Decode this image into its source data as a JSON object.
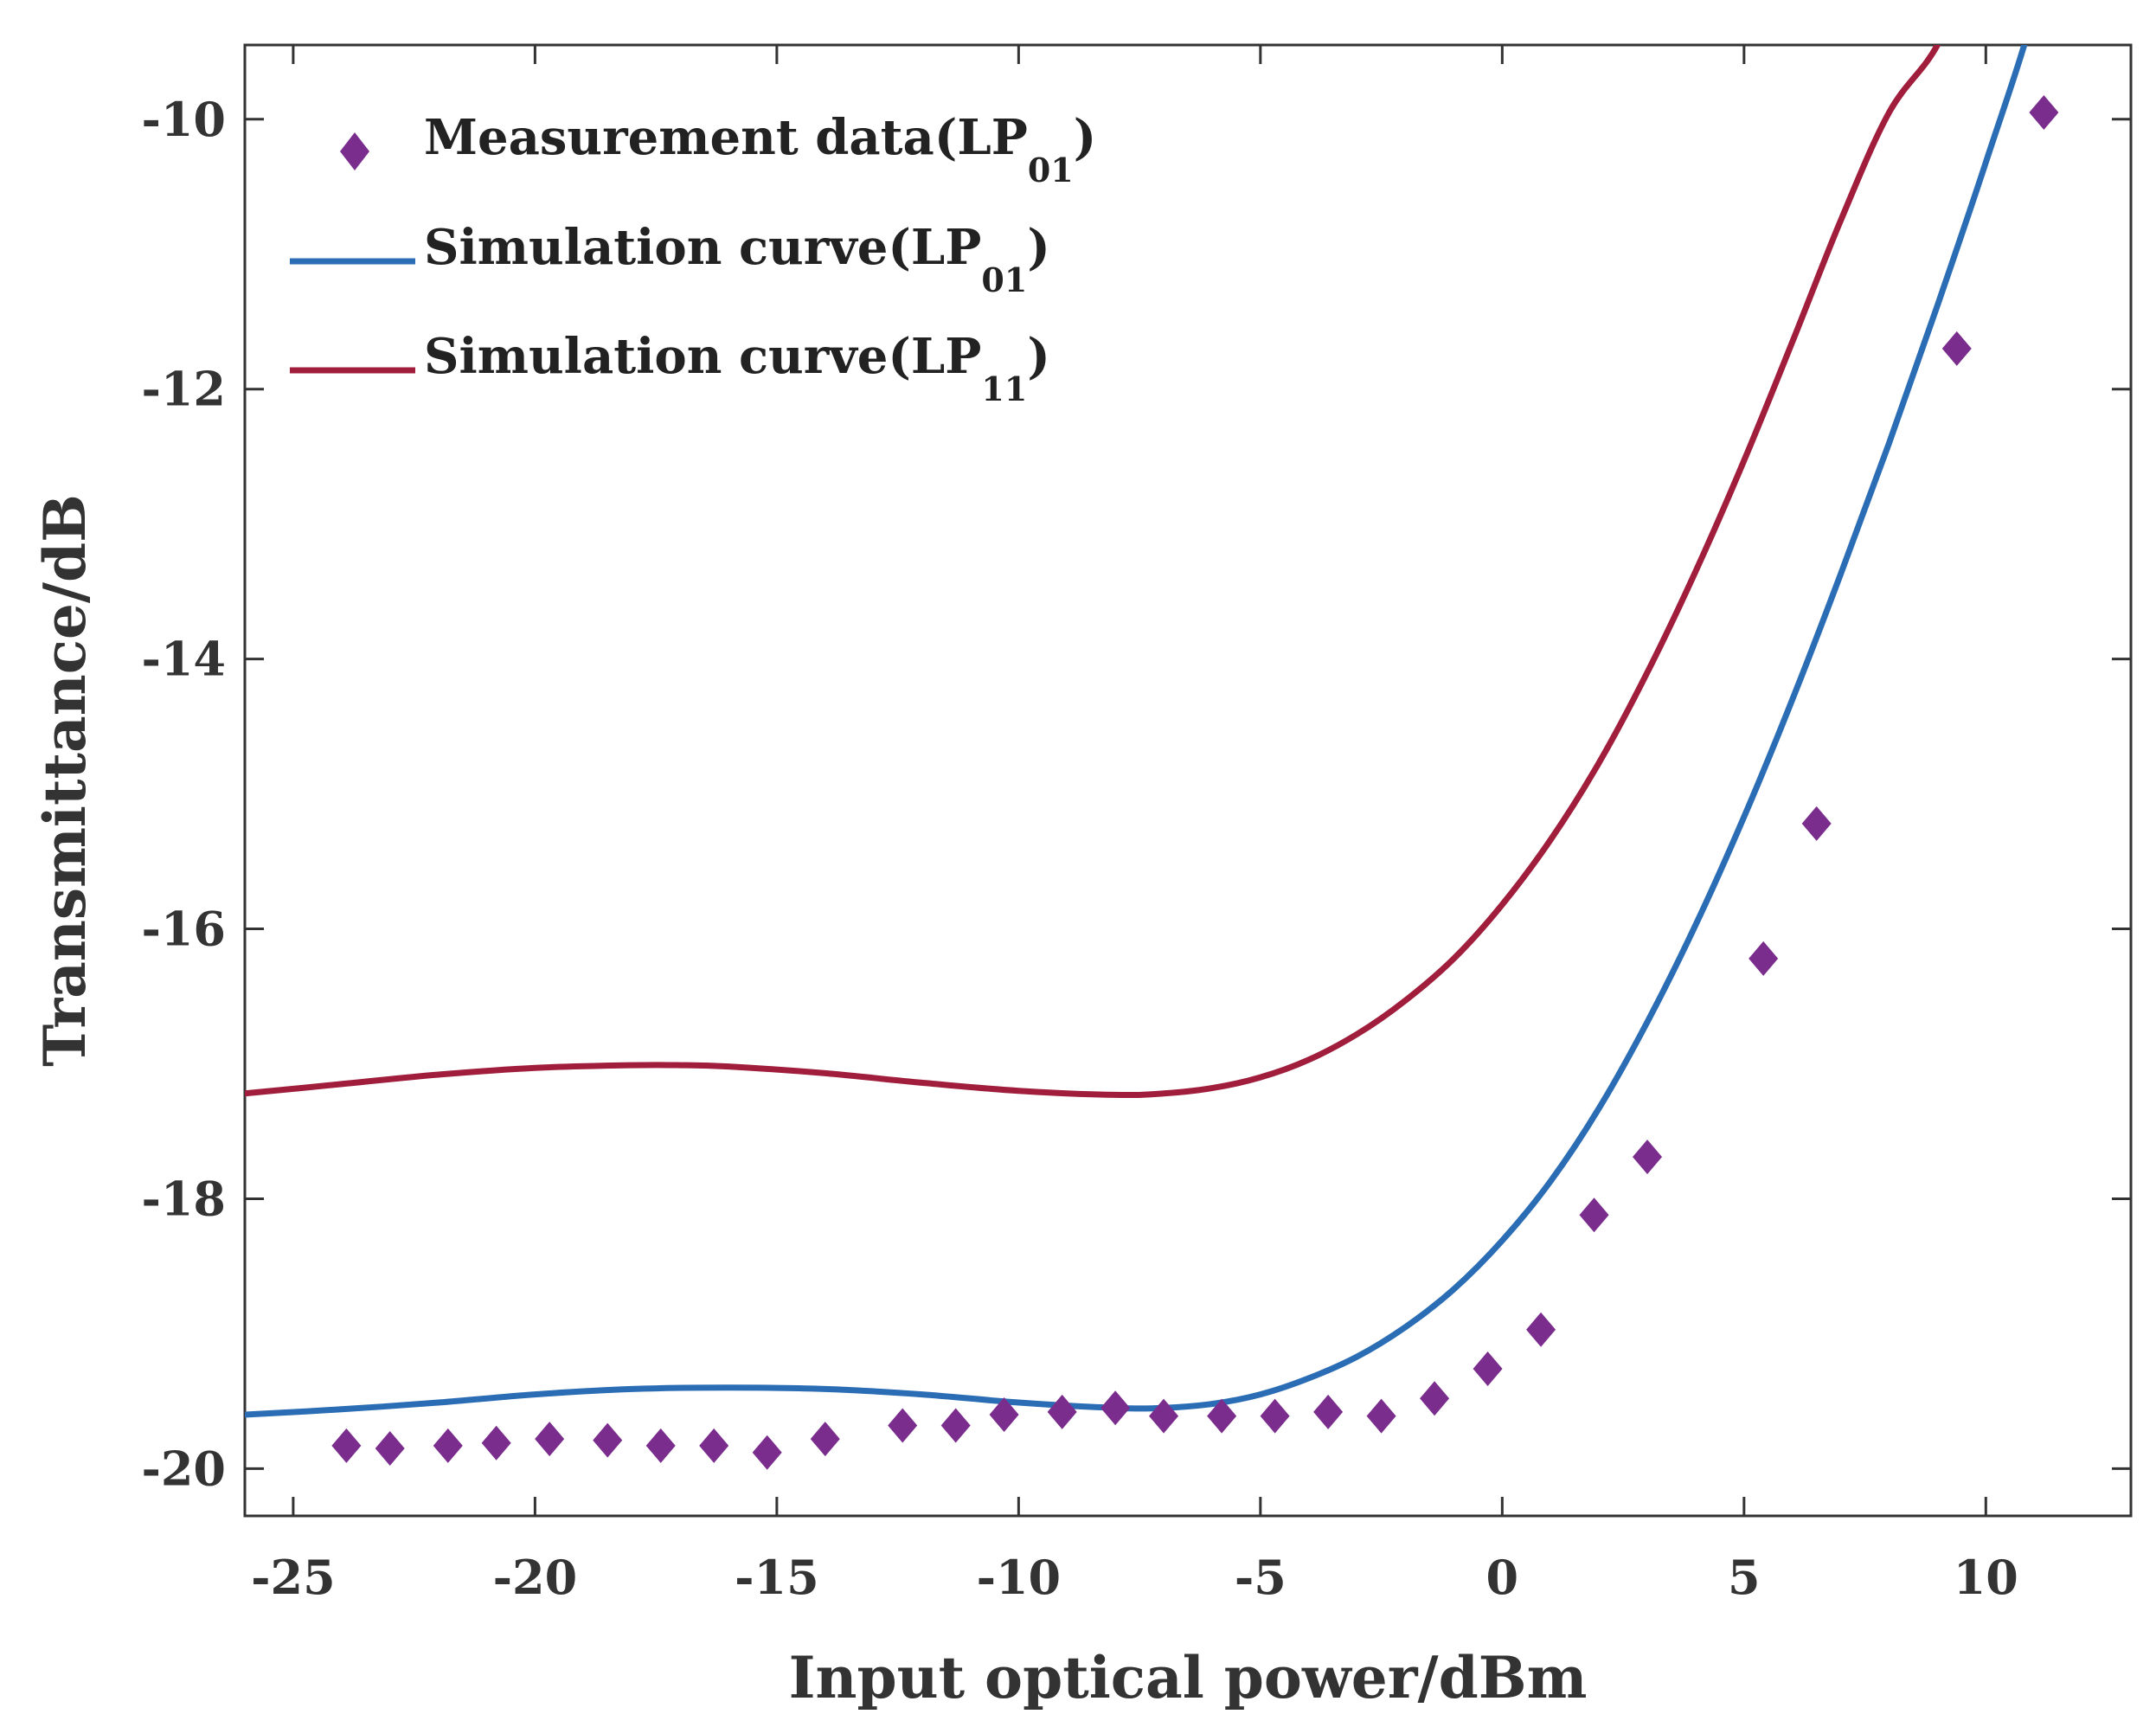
{
  "chart_data": {
    "type": "line",
    "title": "",
    "xlabel": "Input optical power/dBm",
    "ylabel": "Transmittance/dB",
    "xlim": [
      -26,
      13
    ],
    "ylim": [
      -20.35,
      -9.45
    ],
    "xticks": [
      -25,
      -20,
      -15,
      -10,
      -5,
      0,
      5,
      10
    ],
    "yticks": [
      -20,
      -18,
      -16,
      -14,
      -12,
      -10
    ],
    "grid": false,
    "legend_position": "top-left",
    "colors": {
      "measurement": "#7b2d8e",
      "lp01": "#2a6db5",
      "lp11": "#a01d3c"
    },
    "legend": [
      {
        "series": "measurement",
        "prefix": "Measurement data(LP",
        "sub": "01",
        "suffix": ")"
      },
      {
        "series": "lp01",
        "prefix": "Simulation curve(LP",
        "sub": "01",
        "suffix": ")"
      },
      {
        "series": "lp11",
        "prefix": "Simulation curve(LP",
        "sub": "11",
        "suffix": ")"
      }
    ],
    "series": [
      {
        "name": "Measurement data(LP01)",
        "key": "measurement",
        "style": "markers-diamond",
        "x": [
          -23.9,
          -23.0,
          -21.8,
          -20.8,
          -19.7,
          -18.5,
          -17.4,
          -16.3,
          -15.2,
          -14.0,
          -12.4,
          -11.3,
          -10.3,
          -9.1,
          -8.0,
          -7.0,
          -5.8,
          -4.7,
          -3.6,
          -2.5,
          -1.4,
          -0.3,
          0.8,
          1.9,
          3.0,
          5.4,
          6.5,
          9.4,
          11.2
        ],
        "y": [
          -19.83,
          -19.85,
          -19.83,
          -19.81,
          -19.78,
          -19.79,
          -19.83,
          -19.83,
          -19.88,
          -19.78,
          -19.68,
          -19.68,
          -19.6,
          -19.58,
          -19.55,
          -19.61,
          -19.61,
          -19.61,
          -19.58,
          -19.61,
          -19.48,
          -19.26,
          -18.97,
          -18.12,
          -17.69,
          -16.22,
          -15.22,
          -11.7,
          -9.95
        ]
      },
      {
        "name": "Simulation curve(LP01)",
        "key": "lp01",
        "style": "line",
        "x": [
          -26,
          -24,
          -22,
          -20,
          -18,
          -16,
          -14,
          -12,
          -10,
          -8,
          -7,
          -6,
          -5,
          -4,
          -3,
          -2,
          -1,
          0,
          1,
          2,
          3,
          4,
          5,
          6,
          7,
          8,
          9,
          10,
          11,
          11.6
        ],
        "y": [
          -19.6,
          -19.56,
          -19.51,
          -19.45,
          -19.41,
          -19.4,
          -19.41,
          -19.45,
          -19.51,
          -19.55,
          -19.55,
          -19.52,
          -19.45,
          -19.33,
          -19.17,
          -18.95,
          -18.67,
          -18.31,
          -17.87,
          -17.33,
          -16.69,
          -15.97,
          -15.17,
          -14.3,
          -13.37,
          -12.4,
          -11.38,
          -10.32,
          -9.2,
          -9.5
        ]
      },
      {
        "name": "Simulation curve(LP11)",
        "key": "lp11",
        "style": "line",
        "x": [
          -26,
          -24,
          -22,
          -20,
          -18,
          -17,
          -16,
          -14,
          -12,
          -10,
          -8,
          -7,
          -6,
          -5,
          -4,
          -3,
          -2,
          -1,
          0,
          1,
          2,
          3,
          4,
          5,
          6,
          7,
          8,
          9,
          10
        ],
        "y": [
          -17.22,
          -17.15,
          -17.08,
          -17.03,
          -17.01,
          -17.01,
          -17.02,
          -17.07,
          -17.14,
          -17.2,
          -17.23,
          -17.22,
          -17.18,
          -17.1,
          -16.97,
          -16.78,
          -16.53,
          -16.22,
          -15.82,
          -15.34,
          -14.77,
          -14.1,
          -13.35,
          -12.53,
          -11.65,
          -10.75,
          -9.95,
          -9.45,
          -9.45
        ]
      }
    ]
  }
}
